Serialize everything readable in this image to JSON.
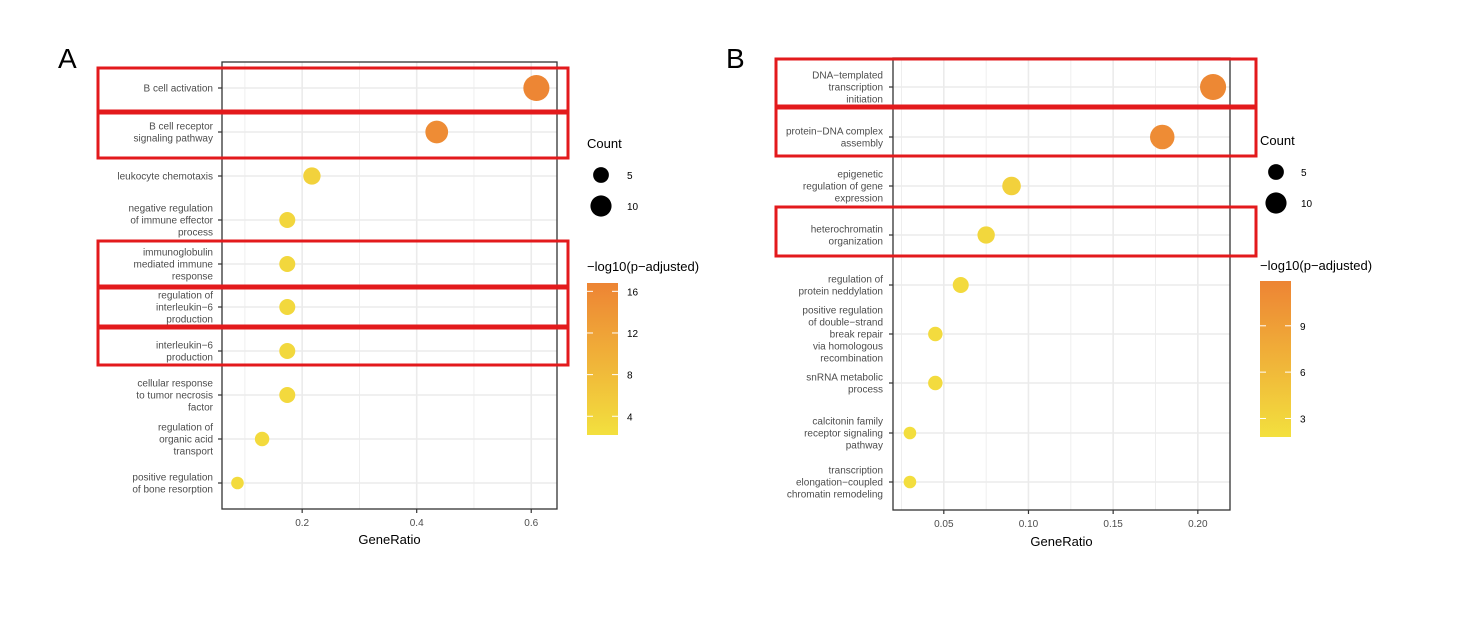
{
  "chart_data": [
    {
      "panel": "A",
      "type": "scatter",
      "title": "",
      "xlabel": "GeneRatio",
      "ylabel": "",
      "xlim": [
        0.06,
        0.645
      ],
      "xticks": [
        0.2,
        0.4,
        0.6
      ],
      "xtick_labels": [
        "0.2",
        "0.4",
        "0.6"
      ],
      "grid": true,
      "highlight_color": "#e31a1c",
      "categories": [
        "B cell activation",
        "B cell receptor\nsignaling pathway",
        "leukocyte chemotaxis",
        "negative regulation\nof immune effector\nprocess",
        "immunoglobulin\nmediated immune\nresponse",
        "regulation of\ninterleukin−6\nproduction",
        "interleukin−6\nproduction",
        "cellular response\nto tumor necrosis\nfactor",
        "regulation of\norganic acid\ntransport",
        "positive regulation\nof bone resorption"
      ],
      "x": [
        0.609,
        0.435,
        0.217,
        0.174,
        0.174,
        0.174,
        0.174,
        0.174,
        0.13,
        0.087
      ],
      "count": [
        14,
        10,
        5,
        4,
        4,
        4,
        4,
        4,
        3,
        2
      ],
      "color_value": [
        16.5,
        15.5,
        4.5,
        3.8,
        3.6,
        3.5,
        3.5,
        3.3,
        3.2,
        3.0
      ],
      "highlighted": [
        true,
        true,
        false,
        false,
        true,
        true,
        true,
        false,
        false,
        false
      ],
      "size_legend": {
        "title": "Count",
        "values": [
          5,
          10
        ],
        "labels": [
          "5",
          "10"
        ]
      },
      "color_legend": {
        "title": "−log10(p−adjusted)",
        "range": [
          2.2,
          16.8
        ],
        "ticks": [
          4,
          8,
          12,
          16
        ],
        "tick_labels": [
          "4",
          "8",
          "12",
          "16"
        ],
        "low_color": "#f3e03e",
        "high_color": "#ed8434"
      },
      "legend_position": "right"
    },
    {
      "panel": "B",
      "type": "scatter",
      "title": "",
      "xlabel": "GeneRatio",
      "ylabel": "",
      "xlim": [
        0.02,
        0.219
      ],
      "xticks": [
        0.05,
        0.1,
        0.15,
        0.2
      ],
      "xtick_labels": [
        "0.05",
        "0.10",
        "0.15",
        "0.20"
      ],
      "grid": true,
      "highlight_color": "#e31a1c",
      "categories": [
        "DNA−templated\ntranscription\ninitiation",
        "protein−DNA complex\nassembly",
        "epigenetic\nregulation of gene\nexpression",
        "heterochromatin\norganization",
        "regulation of\nprotein neddylation",
        "positive regulation\nof double−strand\nbreak repair\nvia homologous\nrecombination",
        "snRNA metabolic\nprocess",
        "calcitonin family\nreceptor signaling\npathway",
        "transcription\nelongation−coupled\nchromatin remodeling"
      ],
      "x": [
        0.209,
        0.179,
        0.09,
        0.075,
        0.06,
        0.045,
        0.045,
        0.03,
        0.03
      ],
      "count": [
        14,
        12,
        6,
        5,
        4,
        3,
        3,
        2,
        2
      ],
      "color_value": [
        11.5,
        11.0,
        3.5,
        2.8,
        2.5,
        2.3,
        2.3,
        2.0,
        2.0
      ],
      "highlighted": [
        true,
        true,
        false,
        true,
        false,
        false,
        false,
        false,
        false
      ],
      "size_legend": {
        "title": "Count",
        "values": [
          5,
          10
        ],
        "labels": [
          "5",
          "10"
        ]
      },
      "color_legend": {
        "title": "−log10(p−adjusted)",
        "range": [
          1.8,
          11.9
        ],
        "ticks": [
          3,
          6,
          9
        ],
        "tick_labels": [
          "3",
          "6",
          "9"
        ],
        "low_color": "#f3e03e",
        "high_color": "#ed8434"
      },
      "legend_position": "right"
    }
  ]
}
